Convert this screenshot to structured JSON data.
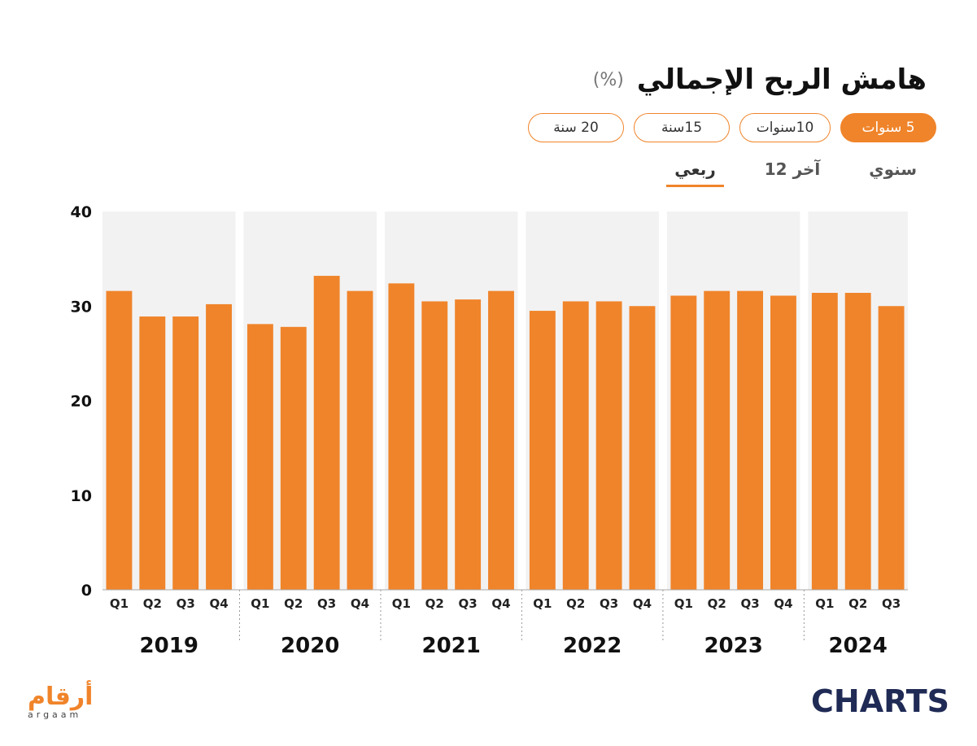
{
  "header": {
    "title": "هامش الربح الإجمالي",
    "unit": "(%)"
  },
  "range_pills": [
    {
      "label": "5 سنوات",
      "active": true
    },
    {
      "label": "10سنوات",
      "active": false
    },
    {
      "label": "15سنة",
      "active": false
    },
    {
      "label": "20 سنة",
      "active": false
    }
  ],
  "period_tabs": [
    {
      "label": "سنوي",
      "active": false
    },
    {
      "label": "آخر 12",
      "active": false
    },
    {
      "label": "ربعي",
      "active": true
    }
  ],
  "colors": {
    "bar": "#f0842a",
    "band": "#f2f2f2",
    "accent": "#f0842a",
    "charts_brand": "#1f2a55"
  },
  "logos": {
    "argaam_ar": "أرقام",
    "argaam_en": "argaam",
    "charts": "CHARTS"
  },
  "chart_data": {
    "type": "bar",
    "ylim": [
      0,
      40
    ],
    "yticks": [
      0,
      10,
      20,
      30,
      40
    ],
    "groups": [
      {
        "year": "2019",
        "quarters": [
          "Q1",
          "Q2",
          "Q3",
          "Q4"
        ],
        "values": [
          31.6,
          28.9,
          28.9,
          30.2
        ]
      },
      {
        "year": "2020",
        "quarters": [
          "Q1",
          "Q2",
          "Q3",
          "Q4"
        ],
        "values": [
          28.1,
          27.8,
          33.2,
          31.6
        ]
      },
      {
        "year": "2021",
        "quarters": [
          "Q1",
          "Q2",
          "Q3",
          "Q4"
        ],
        "values": [
          32.4,
          30.5,
          30.7,
          31.6
        ]
      },
      {
        "year": "2022",
        "quarters": [
          "Q1",
          "Q2",
          "Q3",
          "Q4"
        ],
        "values": [
          29.5,
          30.5,
          30.5,
          30.0
        ]
      },
      {
        "year": "2023",
        "quarters": [
          "Q1",
          "Q2",
          "Q3",
          "Q4"
        ],
        "values": [
          31.1,
          31.6,
          31.6,
          31.1
        ]
      },
      {
        "year": "2024",
        "quarters": [
          "Q1",
          "Q2",
          "Q3"
        ],
        "values": [
          31.4,
          31.4,
          30.0
        ]
      }
    ]
  }
}
